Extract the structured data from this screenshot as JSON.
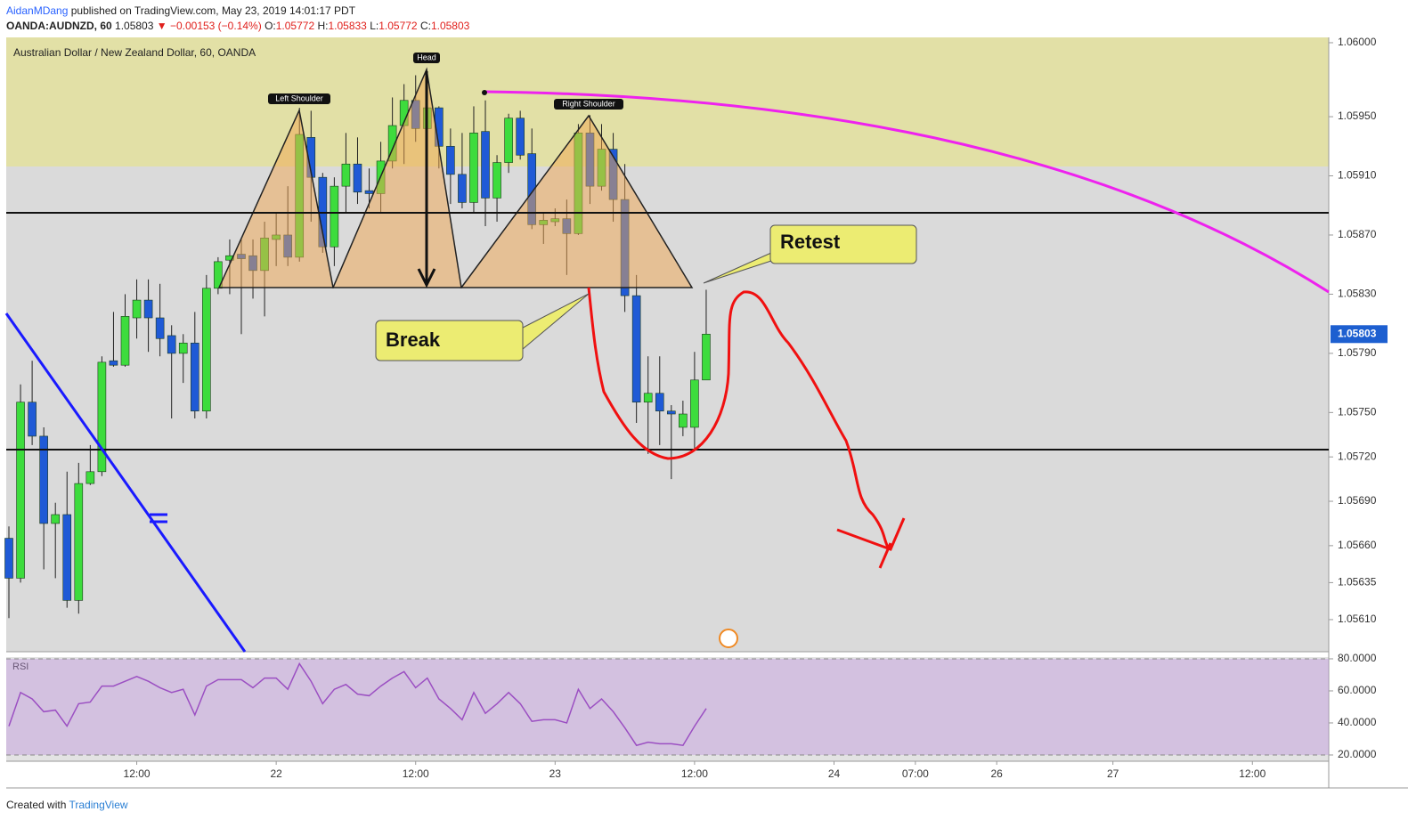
{
  "header": {
    "author": "AidanMDang",
    "published": "published on TradingView.com, May 23, 2019 14:01:17 PDT",
    "symbol": "OANDA:AUDNZD, 60",
    "price": "1.05803",
    "change": "▼ −0.00153 (−0.14%)",
    "o_label": "O:",
    "o": "1.05772",
    "h_label": "H:",
    "h": "1.05833",
    "l_label": "L:",
    "l": "1.05772",
    "c_label": "C:",
    "c": "1.05803"
  },
  "footer": {
    "created": "Created with",
    "brand": "TradingView"
  },
  "chart_data": {
    "type": "candlestick",
    "title": "Australian Dollar / New Zealand Dollar, 60, OANDA",
    "up_color": "#3ddc3d",
    "down_color": "#1f5ad6",
    "open": [
      1.05665,
      1.05638,
      1.05757,
      1.05734,
      1.05675,
      1.05681,
      1.05623,
      1.05702,
      1.0571,
      1.05785,
      1.05782,
      1.05814,
      1.05826,
      1.05814,
      1.05802,
      1.0579,
      1.05797,
      1.05751,
      1.05834,
      1.05853,
      1.05857,
      1.05856,
      1.05846,
      1.05867,
      1.0587,
      1.05855,
      1.05936,
      1.05909,
      1.05862,
      1.05903,
      1.05918,
      1.059,
      1.05898,
      1.0592,
      1.05944,
      1.05961,
      1.05942,
      1.05956,
      1.0593,
      1.05911,
      1.05892,
      1.0594,
      1.05895,
      1.05919,
      1.05949,
      1.05925,
      1.05877,
      1.05879,
      1.05881,
      1.05871,
      1.05939,
      1.05903,
      1.05928,
      1.05894,
      1.05829,
      1.05757,
      1.05763,
      1.05751,
      1.0574,
      1.0574,
      1.05772
    ],
    "high": [
      1.05673,
      1.05769,
      1.05785,
      1.0574,
      1.05689,
      1.0571,
      1.05716,
      1.05728,
      1.05788,
      1.05818,
      1.0583,
      1.0584,
      1.0584,
      1.05837,
      1.05809,
      1.05803,
      1.05818,
      1.05843,
      1.05855,
      1.05867,
      1.05867,
      1.05867,
      1.05879,
      1.05885,
      1.05903,
      1.05956,
      1.05954,
      1.05912,
      1.05909,
      1.05939,
      1.05936,
      1.05915,
      1.05933,
      1.05963,
      1.05972,
      1.05978,
      1.0598,
      1.05957,
      1.05942,
      1.05939,
      1.05957,
      1.05961,
      1.05924,
      1.05952,
      1.05954,
      1.05942,
      1.05885,
      1.05888,
      1.05894,
      1.05945,
      1.05951,
      1.05945,
      1.05939,
      1.05918,
      1.05843,
      1.05788,
      1.05788,
      1.05755,
      1.05758,
      1.05791,
      1.05833
    ],
    "low": [
      1.05611,
      1.05635,
      1.05728,
      1.05644,
      1.05638,
      1.05618,
      1.05614,
      1.05701,
      1.05707,
      1.05781,
      1.05781,
      1.058,
      1.05791,
      1.05788,
      1.05746,
      1.0577,
      1.05746,
      1.05746,
      1.0583,
      1.0583,
      1.05803,
      1.05827,
      1.05815,
      1.05849,
      1.05849,
      1.05852,
      1.05879,
      1.05858,
      1.05849,
      1.05885,
      1.05891,
      1.05888,
      1.05885,
      1.05915,
      1.05918,
      1.05933,
      1.05939,
      1.05915,
      1.05891,
      1.05888,
      1.05885,
      1.05876,
      1.05879,
      1.05912,
      1.05921,
      1.05874,
      1.05864,
      1.05876,
      1.05843,
      1.0587,
      1.05891,
      1.059,
      1.05879,
      1.05818,
      1.05743,
      1.05722,
      1.05728,
      1.05705,
      1.05734,
      1.05725,
      1.05772
    ],
    "close": [
      1.05638,
      1.05757,
      1.05734,
      1.05675,
      1.05681,
      1.05623,
      1.05702,
      1.0571,
      1.05784,
      1.05782,
      1.05815,
      1.05826,
      1.05814,
      1.058,
      1.0579,
      1.05797,
      1.05751,
      1.05834,
      1.05852,
      1.05856,
      1.05854,
      1.05846,
      1.05868,
      1.0587,
      1.05855,
      1.05938,
      1.05909,
      1.05862,
      1.05903,
      1.05918,
      1.05899,
      1.05898,
      1.0592,
      1.05944,
      1.05961,
      1.05942,
      1.05956,
      1.0593,
      1.05911,
      1.05892,
      1.05939,
      1.05895,
      1.05919,
      1.05949,
      1.05924,
      1.05877,
      1.0588,
      1.05881,
      1.05871,
      1.05939,
      1.05903,
      1.05928,
      1.05894,
      1.05829,
      1.05757,
      1.05763,
      1.05751,
      1.05749,
      1.05749,
      1.05772,
      1.05803
    ],
    "last_price": 1.05803,
    "xlim": [
      -0.23,
      113.57
    ],
    "xticks": [
      {
        "value": 11,
        "label": "12:00"
      },
      {
        "value": 23,
        "label": "22"
      },
      {
        "value": 35,
        "label": "12:00"
      },
      {
        "value": 47,
        "label": "23"
      },
      {
        "value": 59,
        "label": "12:00"
      },
      {
        "value": 71,
        "label": "24"
      },
      {
        "value": 78,
        "label": "07:00"
      },
      {
        "value": 85,
        "label": "26"
      },
      {
        "value": 95,
        "label": "27"
      },
      {
        "value": 107,
        "label": "12:00"
      }
    ],
    "ylim": [
      1.055883,
      1.060036
    ],
    "yticks": [
      {
        "value": 1.06,
        "label": "1.06000"
      },
      {
        "value": 1.0595,
        "label": "1.05950"
      },
      {
        "value": 1.0591,
        "label": "1.05910"
      },
      {
        "value": 1.0587,
        "label": "1.05870"
      },
      {
        "value": 1.0583,
        "label": "1.05830"
      },
      {
        "value": 1.0579,
        "label": "1.05790"
      },
      {
        "value": 1.0575,
        "label": "1.05750"
      },
      {
        "value": 1.0572,
        "label": "1.05720"
      },
      {
        "value": 1.0569,
        "label": "1.05690"
      },
      {
        "value": 1.0566,
        "label": "1.05660"
      },
      {
        "value": 1.05635,
        "label": "1.05635"
      },
      {
        "value": 1.0561,
        "label": "1.05610"
      }
    ],
    "annotations": {
      "left_shoulder": "Left Shoulder",
      "head": "Head",
      "right_shoulder": "Right Shoulder",
      "break": "Break",
      "retest": "Retest"
    },
    "rsi": {
      "name": "RSI",
      "color": "#9b4fc2",
      "values": [
        38,
        59,
        55,
        47,
        48,
        38,
        52,
        53,
        63,
        63,
        66,
        69,
        66,
        62,
        59,
        61,
        45,
        63,
        67,
        67,
        67,
        62,
        68,
        68,
        61,
        77,
        66,
        52,
        61,
        64,
        58,
        57,
        63,
        68,
        72,
        62,
        68,
        55,
        49,
        42,
        59,
        46,
        52,
        59,
        52,
        41,
        42,
        42,
        40,
        61,
        49,
        55,
        47,
        37,
        26,
        28,
        27,
        27,
        26,
        38,
        49
      ],
      "ylim": [
        16.1,
        81.1
      ],
      "yticks": [
        {
          "value": 80,
          "label": "80.0000"
        },
        {
          "value": 60,
          "label": "60.0000"
        },
        {
          "value": 40,
          "label": "40.0000"
        },
        {
          "value": 20,
          "label": "20.0000"
        }
      ]
    }
  }
}
